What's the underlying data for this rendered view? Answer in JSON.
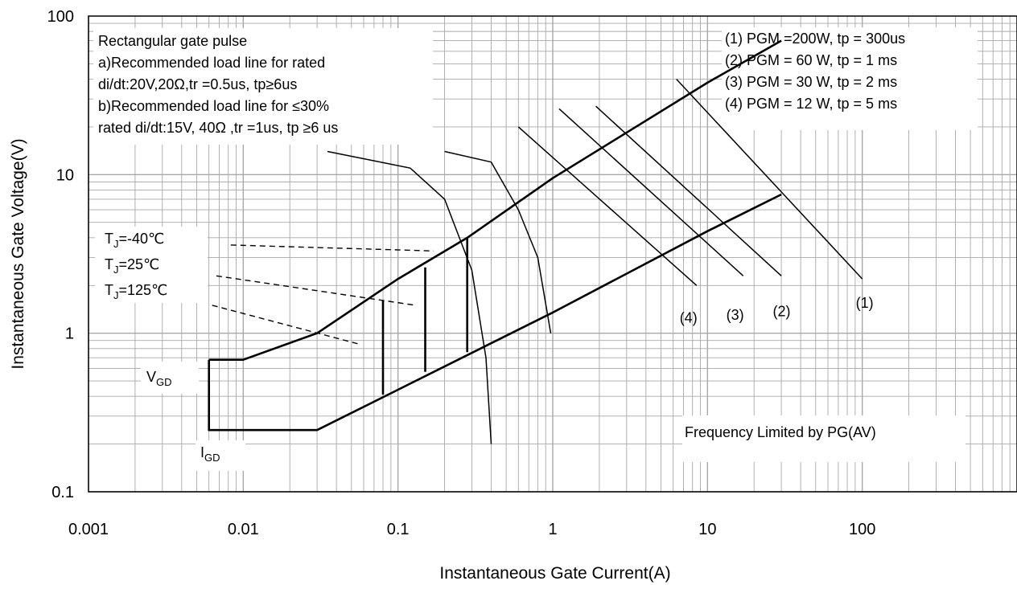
{
  "chart_data": {
    "type": "line",
    "xlabel": "Instantaneous Gate Current(A)",
    "ylabel": "Instantaneous Gate Voltage(V)",
    "x_scale": "log",
    "y_scale": "log",
    "xlim": [
      0.001,
      1000
    ],
    "ylim": [
      0.1,
      100
    ],
    "x_ticks": [
      {
        "value": 0.001,
        "label": "0.001"
      },
      {
        "value": 0.01,
        "label": "0.01"
      },
      {
        "value": 0.1,
        "label": "0.1"
      },
      {
        "value": 1,
        "label": "1"
      },
      {
        "value": 10,
        "label": "10"
      },
      {
        "value": 100,
        "label": "100"
      }
    ],
    "y_ticks": [
      {
        "value": 0.1,
        "label": "0.1"
      },
      {
        "value": 1,
        "label": "1"
      },
      {
        "value": 10,
        "label": "10"
      },
      {
        "value": 100,
        "label": "100"
      }
    ],
    "grid": true,
    "notes": [
      "Rectangular gate pulse",
      "a)Recommended load line for rated",
      "di/dt:20V,20Ω,tr =0.5us, tp≥6us",
      "b)Recommended load line for ≤30%",
      "rated di/dt:15V, 40Ω ,tr =1us, tp ≥6 us"
    ],
    "power_legend": [
      "(1) PGM =200W, tp = 300us",
      "(2) PGM = 60 W, tp = 1 ms",
      "(3) PGM = 30 W, tp = 2 ms",
      "(4) PGM = 12 W, tp = 5 ms"
    ],
    "frequency_note": "Frequency Limited by PG(AV)",
    "temperature_labels": [
      {
        "base": "T",
        "sub": "J",
        "rest": "=-40℃"
      },
      {
        "base": "T",
        "sub": "J",
        "rest": "=25℃"
      },
      {
        "base": "T",
        "sub": "J",
        "rest": "=125℃"
      }
    ],
    "vgd_label": {
      "base": "V",
      "sub": "GD"
    },
    "igd_label": {
      "base": "I",
      "sub": "GD"
    },
    "series": [
      {
        "id": "upper-boundary",
        "style": "thick",
        "x": [
          0.006,
          0.01,
          0.03,
          0.1,
          0.28,
          1,
          10,
          30
        ],
        "y": [
          0.68,
          0.68,
          1.0,
          2.2,
          4.0,
          9.5,
          38,
          70
        ]
      },
      {
        "id": "lower-boundary",
        "style": "thick",
        "x": [
          0.006,
          0.006,
          0.03,
          0.1,
          1,
          10,
          30
        ],
        "y": [
          0.68,
          0.245,
          0.245,
          0.44,
          1.35,
          4.4,
          7.5
        ]
      },
      {
        "id": "junction-line-1",
        "style": "thick",
        "x": [
          0.08,
          0.08
        ],
        "y": [
          0.41,
          1.6
        ]
      },
      {
        "id": "junction-line-2",
        "style": "thick",
        "x": [
          0.15,
          0.15
        ],
        "y": [
          0.57,
          2.6
        ]
      },
      {
        "id": "junction-line-3",
        "style": "thick",
        "x": [
          0.28,
          0.28
        ],
        "y": [
          0.76,
          4.0
        ]
      },
      {
        "id": "load-line-a",
        "style": "thin",
        "x": [
          0.035,
          0.12,
          0.2,
          0.3,
          0.37,
          0.4
        ],
        "y": [
          14,
          11,
          7,
          2.5,
          0.7,
          0.2
        ]
      },
      {
        "id": "load-line-b",
        "style": "thin",
        "x": [
          0.2,
          0.4,
          0.6,
          0.8,
          0.97
        ],
        "y": [
          14,
          12,
          6,
          3,
          1.0
        ]
      },
      {
        "id": "power-curve-1",
        "style": "thin",
        "x": [
          6.3,
          100
        ],
        "y": [
          40,
          2.2
        ]
      },
      {
        "id": "power-curve-2",
        "style": "thin",
        "x": [
          1.9,
          30
        ],
        "y": [
          27,
          2.3
        ]
      },
      {
        "id": "power-curve-3",
        "style": "thin",
        "x": [
          1.1,
          17
        ],
        "y": [
          26,
          2.3
        ]
      },
      {
        "id": "power-curve-4",
        "style": "thin",
        "x": [
          0.6,
          8.5
        ],
        "y": [
          20,
          2.0
        ]
      },
      {
        "id": "temperature-ref-1",
        "style": "dashed",
        "x": [
          0.0083,
          0.17
        ],
        "y": [
          3.6,
          3.3
        ]
      },
      {
        "id": "temperature-ref-2",
        "style": "dashed",
        "x": [
          0.0067,
          0.13
        ],
        "y": [
          2.3,
          1.5
        ]
      },
      {
        "id": "temperature-ref-3",
        "style": "dashed",
        "x": [
          0.0063,
          0.057
        ],
        "y": [
          1.5,
          0.85
        ]
      }
    ],
    "curve_labels": [
      {
        "text": "(1)",
        "x": 110,
        "y": 1.55
      },
      {
        "text": "(2)",
        "x": 32,
        "y": 1.37
      },
      {
        "text": "(3)",
        "x": 16,
        "y": 1.3
      },
      {
        "text": "(4)",
        "x": 8.0,
        "y": 1.25
      }
    ]
  }
}
